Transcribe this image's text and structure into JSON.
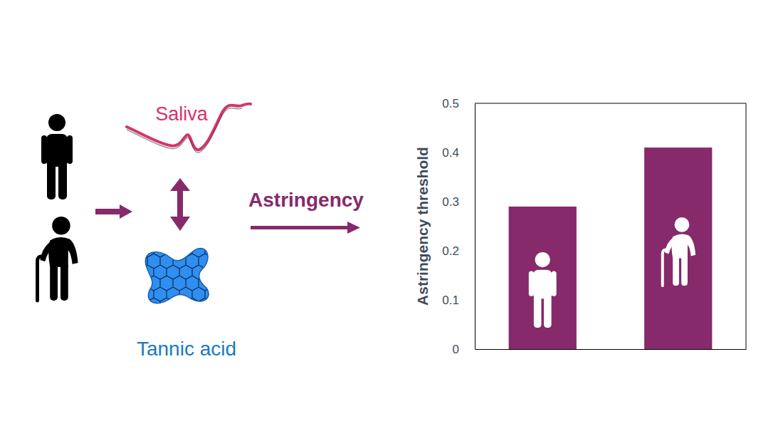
{
  "chart_data": {
    "type": "bar",
    "ylabel": "Astringency threshold",
    "categories": [
      null,
      null
    ],
    "values": [
      0.29,
      0.41
    ],
    "color": "#862a6b",
    "ylim": [
      0,
      0.5
    ],
    "yticks": [
      0,
      0.1,
      0.2,
      0.3,
      0.4,
      0.5
    ],
    "grid": false,
    "tick_labels": "y",
    "annotations": [
      "Saliva",
      "Astringency",
      "Tannic acid"
    ]
  }
}
